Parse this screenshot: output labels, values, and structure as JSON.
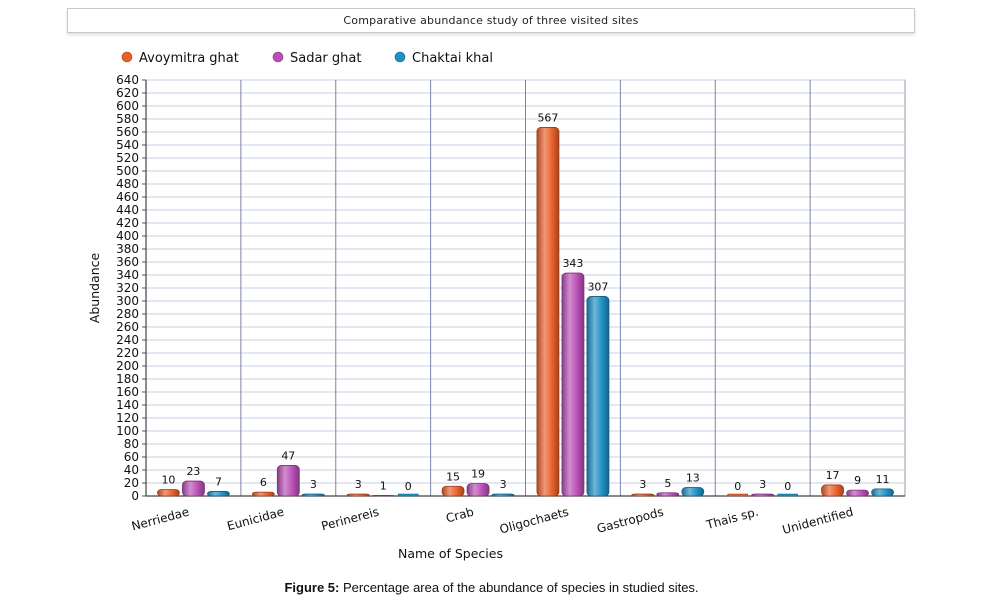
{
  "chart_data": {
    "type": "bar",
    "title": "Comparative abundance study of three visited sites",
    "xlabel": "Name of Species",
    "ylabel": "Abundance",
    "ylim": [
      0,
      640
    ],
    "ytick_step": 20,
    "grid": true,
    "legend_position": "top-left",
    "categories": [
      "Nerriedae",
      "Eunicidae",
      "Perinereis",
      "Crab",
      "Oligochaets",
      "Gastropods",
      "Thais sp.",
      "Unidentified"
    ],
    "series": [
      {
        "name": "Avoymitra ghat",
        "color": "#e8602c",
        "values": [
          10,
          6,
          3,
          15,
          567,
          3,
          0,
          17
        ]
      },
      {
        "name": "Sadar ghat",
        "color": "#b94fb5",
        "values": [
          23,
          47,
          1,
          19,
          343,
          5,
          3,
          9
        ]
      },
      {
        "name": "Chaktai khal",
        "color": "#1f8fc4",
        "values": [
          7,
          3,
          0,
          3,
          307,
          13,
          0,
          11
        ]
      }
    ]
  },
  "caption": {
    "label": "Figure 5:",
    "text": " Percentage area of the abundance of species in studied sites."
  }
}
